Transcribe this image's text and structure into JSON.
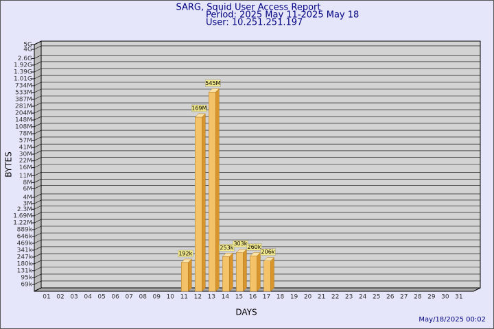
{
  "chart_data": {
    "type": "bar",
    "title": "SARG, Squid User Access Report",
    "subtitle": "Period: 2025 May 11-2025 May 18",
    "user": "User: 10.251.251.197",
    "y_label": "BYTES",
    "x_label": "DAYS",
    "footer": "May/18/2025 00:02",
    "log_scale": true,
    "grid": true,
    "color": "#f4c268",
    "categories": [
      "01",
      "02",
      "03",
      "04",
      "05",
      "06",
      "07",
      "08",
      "09",
      "10",
      "11",
      "12",
      "13",
      "14",
      "15",
      "16",
      "17",
      "18",
      "19",
      "20",
      "21",
      "22",
      "23",
      "24",
      "25",
      "26",
      "27",
      "28",
      "29",
      "30",
      "31"
    ],
    "values": [
      null,
      null,
      null,
      null,
      null,
      null,
      null,
      null,
      null,
      null,
      192000,
      169000000,
      545000000,
      253000,
      303000,
      260000,
      206000,
      null,
      null,
      null,
      null,
      null,
      null,
      null,
      null,
      null,
      null,
      null,
      null,
      null,
      null
    ],
    "value_labels": [
      null,
      null,
      null,
      null,
      null,
      null,
      null,
      null,
      null,
      null,
      "192k",
      "169M",
      "545M",
      "253k",
      "303k",
      "260k",
      "206k",
      null,
      null,
      null,
      null,
      null,
      null,
      null,
      null,
      null,
      null,
      null,
      null,
      null,
      null
    ],
    "ylim": [
      50000,
      5000000000
    ],
    "yticks": [
      {
        "value": 69000,
        "label": "69k"
      },
      {
        "value": 95000,
        "label": "95k"
      },
      {
        "value": 131000,
        "label": "131k"
      },
      {
        "value": 180000,
        "label": "180k"
      },
      {
        "value": 247000,
        "label": "247k"
      },
      {
        "value": 341000,
        "label": "341k"
      },
      {
        "value": 469000,
        "label": "469k"
      },
      {
        "value": 646000,
        "label": "646k"
      },
      {
        "value": 889000,
        "label": "889k"
      },
      {
        "value": 1220000,
        "label": "1.22M"
      },
      {
        "value": 1690000,
        "label": "1.69M"
      },
      {
        "value": 2300000,
        "label": "2.3M"
      },
      {
        "value": 3000000,
        "label": "3M"
      },
      {
        "value": 4000000,
        "label": "4M"
      },
      {
        "value": 6000000,
        "label": "6M"
      },
      {
        "value": 8000000,
        "label": "8M"
      },
      {
        "value": 11000000,
        "label": "11M"
      },
      {
        "value": 16000000,
        "label": "16M"
      },
      {
        "value": 22000000,
        "label": "22M"
      },
      {
        "value": 30000000,
        "label": "30M"
      },
      {
        "value": 41000000,
        "label": "41M"
      },
      {
        "value": 57000000,
        "label": "57M"
      },
      {
        "value": 78000000,
        "label": "78M"
      },
      {
        "value": 108000000,
        "label": "108M"
      },
      {
        "value": 148000000,
        "label": "148M"
      },
      {
        "value": 204000000,
        "label": "204M"
      },
      {
        "value": 281000000,
        "label": "281M"
      },
      {
        "value": 387000000,
        "label": "387M"
      },
      {
        "value": 533000000,
        "label": "533M"
      },
      {
        "value": 734000000,
        "label": "734M"
      },
      {
        "value": 1010000000,
        "label": "1.01G"
      },
      {
        "value": 1390000000,
        "label": "1.39G"
      },
      {
        "value": 1920000000,
        "label": "1.92G"
      },
      {
        "value": 2600000000,
        "label": "2.6G"
      },
      {
        "value": 4000000000,
        "label": "4G"
      },
      {
        "value": 5000000000,
        "label": "5G"
      }
    ]
  }
}
